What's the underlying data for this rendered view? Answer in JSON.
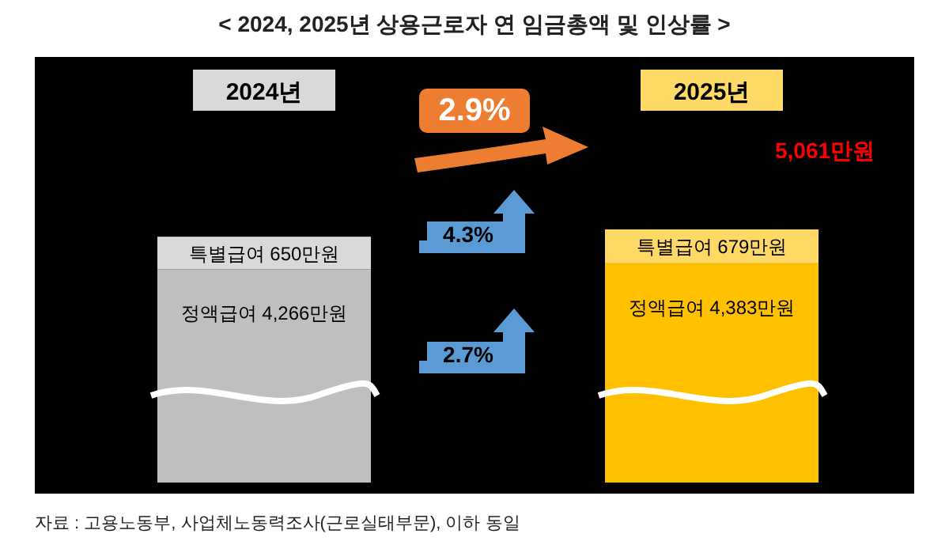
{
  "chart_data": {
    "type": "bar",
    "stacked": true,
    "title": "< 2024, 2025년 상용근로자 연 임금총액 및 인상률 >",
    "categories": [
      "2024년",
      "2025년"
    ],
    "series": [
      {
        "name": null,
        "colors": [
          "#bfbfbf",
          "#ffc000"
        ],
        "values": [
          4266,
          4383
        ],
        "value_labels": [
          "정액급여 4,266만원",
          "정액급여 4,383만원"
        ]
      },
      {
        "name": null,
        "colors": [
          "#d9d9d9",
          "#ffd966"
        ],
        "values": [
          650,
          679
        ],
        "value_labels": [
          "특별급여 650만원",
          "특별급여 679만원"
        ]
      }
    ],
    "totals": [
      null,
      "5,061만원"
    ],
    "annotations": [
      "2.9%",
      "4.3%",
      "2.7%",
      "자료 : 고용노동부, 사업체노동력조사(근로실태부문), 이하 동일"
    ]
  }
}
